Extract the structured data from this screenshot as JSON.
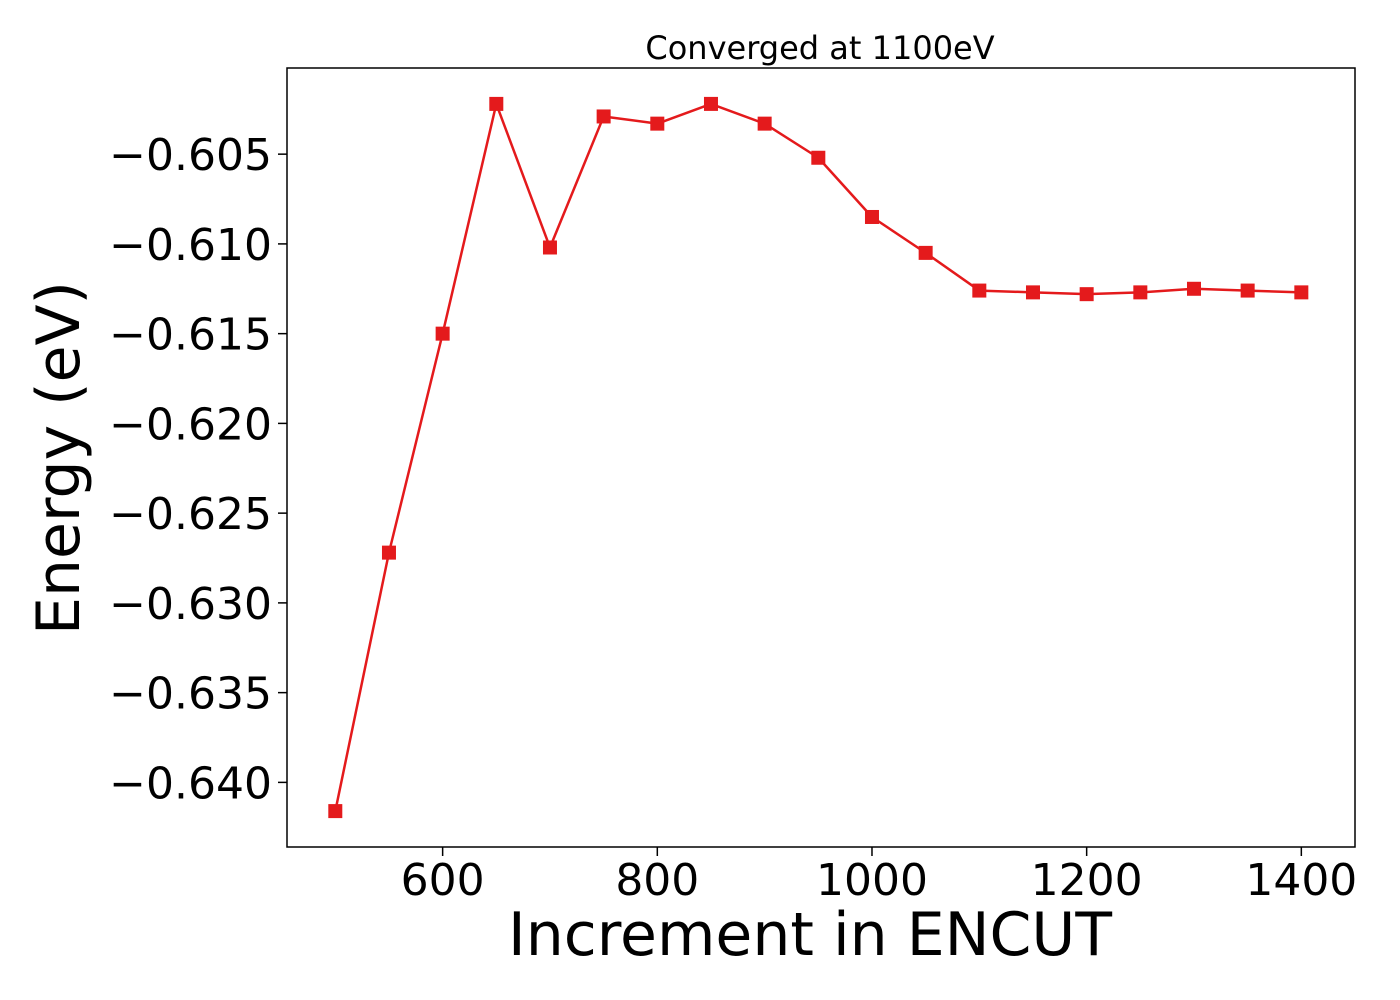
{
  "chart_data": {
    "type": "line",
    "title": "Converged at 1100eV",
    "xlabel": "Increment in ENCUT",
    "ylabel": "Energy (eV)",
    "x": [
      500,
      550,
      600,
      650,
      700,
      750,
      800,
      850,
      900,
      950,
      1000,
      1050,
      1100,
      1150,
      1200,
      1250,
      1300,
      1350,
      1400
    ],
    "series": [
      {
        "values": [
          -0.6416,
          -0.6272,
          -0.615,
          -0.6022,
          -0.6102,
          -0.6029,
          -0.6033,
          -0.6022,
          -0.6033,
          -0.6052,
          -0.6085,
          -0.6105,
          -0.6126,
          -0.6127,
          -0.6128,
          -0.6127,
          -0.6125,
          -0.6126,
          -0.6127
        ],
        "color": "#e41a1c",
        "marker": "square"
      }
    ],
    "xlim": [
      455,
      1450
    ],
    "ylim": [
      -0.6436,
      -0.6002
    ],
    "xticks": [
      600,
      800,
      1000,
      1200,
      1400
    ],
    "xtick_labels": [
      "600",
      "800",
      "1000",
      "1200",
      "1400"
    ],
    "yticks": [
      -0.64,
      -0.635,
      -0.63,
      -0.625,
      -0.62,
      -0.615,
      -0.61,
      -0.605
    ],
    "ytick_labels": [
      "−0.640",
      "−0.635",
      "−0.630",
      "−0.625",
      "−0.620",
      "−0.615",
      "−0.610",
      "−0.605"
    ],
    "grid": false,
    "legend": "none"
  }
}
